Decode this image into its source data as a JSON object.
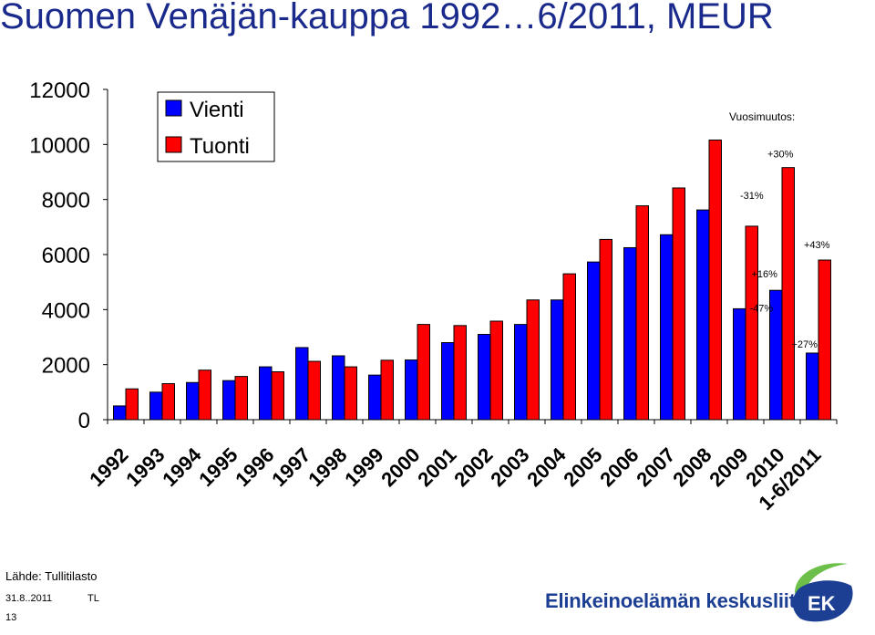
{
  "title": "Suomen Venäjän-kauppa 1992…6/2011, MEUR",
  "source": "Lähde: Tullitilasto",
  "date": "31.8..2011",
  "author": "TL",
  "slide_number": "13",
  "logo_text": "Elinkeinoelämän keskusliitto",
  "logo_mark": "EK",
  "colors": {
    "vienti": "#0000ff",
    "tuonti": "#ff0000",
    "title": "#1a2a8c",
    "logo": "#1c3f94",
    "logo_green": "#6cc04a"
  },
  "chart_data": {
    "type": "bar",
    "categories": [
      "1992",
      "1993",
      "1994",
      "1995",
      "1996",
      "1997",
      "1998",
      "1999",
      "2000",
      "2001",
      "2002",
      "2003",
      "2004",
      "2005",
      "2006",
      "2007",
      "2008",
      "2009",
      "2010",
      "1-6/2011"
    ],
    "series": [
      {
        "name": "Vienti",
        "values": [
          500,
          1000,
          1350,
          1420,
          1920,
          2620,
          2320,
          1620,
          2170,
          2800,
          3100,
          3460,
          4350,
          5730,
          6250,
          6720,
          7620,
          4030,
          4700,
          2420
        ]
      },
      {
        "name": "Tuonti",
        "values": [
          1120,
          1310,
          1800,
          1570,
          1740,
          2120,
          1920,
          2160,
          3460,
          3420,
          3580,
          4350,
          5300,
          6550,
          7770,
          8420,
          10160,
          7030,
          9160,
          5800
        ]
      }
    ],
    "ylim": [
      0,
      12000
    ],
    "yticks": [
      0,
      2000,
      4000,
      6000,
      8000,
      10000,
      12000
    ],
    "legend": {
      "placement": "top-left",
      "entries": [
        "Vienti",
        "Tuonti"
      ]
    },
    "grid": false,
    "annotation_title": "Vuosimuutos:",
    "annotations": [
      {
        "text": "-47%",
        "category": "2009",
        "series": "Vienti"
      },
      {
        "text": "-31%",
        "category": "2009",
        "series": "Tuonti"
      },
      {
        "text": "+16%",
        "category": "2010",
        "series": "Vienti"
      },
      {
        "text": "+30%",
        "category": "2010",
        "series": "Tuonti"
      },
      {
        "text": "+27%",
        "category": "1-6/2011",
        "series": "Vienti"
      },
      {
        "text": "+43%",
        "category": "1-6/2011",
        "series": "Tuonti"
      }
    ]
  }
}
